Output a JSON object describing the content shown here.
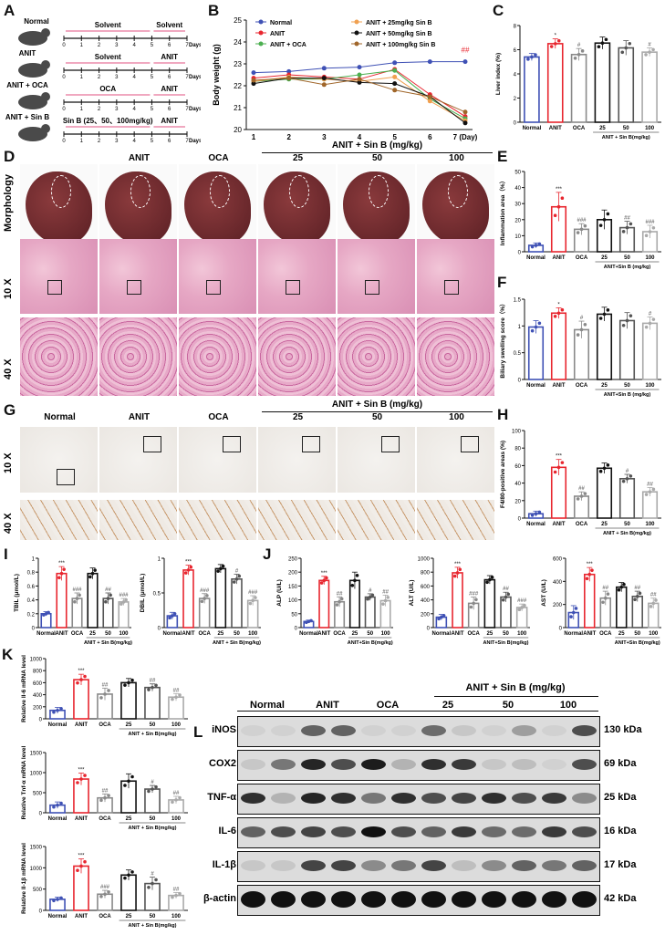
{
  "panel_labels": [
    "A",
    "B",
    "C",
    "D",
    "E",
    "F",
    "G",
    "H",
    "I",
    "J",
    "K",
    "L"
  ],
  "panel_a": {
    "rows": [
      {
        "group": "Normal",
        "seg1": "Solvent",
        "seg2": "Solvent"
      },
      {
        "group": "ANIT",
        "seg1": "Solvent",
        "seg2": "ANIT"
      },
      {
        "group": "ANIT + OCA",
        "seg1": "OCA",
        "seg2": "ANIT"
      },
      {
        "group": "ANIT + Sin B",
        "seg1": "Sin B (25、50、100mg/kg)",
        "seg2": "ANIT"
      }
    ],
    "ticks": [
      "0",
      "1",
      "2",
      "3",
      "4",
      "5",
      "6",
      "7"
    ],
    "unit": "Days",
    "colors": {
      "arrow": "#e8749a",
      "mouse": "#4a4a4a"
    }
  },
  "groups_header": "ANIT + Sin B (mg/kg)",
  "columns": [
    "Normal",
    "ANIT",
    "OCA",
    "25",
    "50",
    "100"
  ],
  "panel_d": {
    "rows": [
      "Morphology",
      "10 X",
      "40 X"
    ]
  },
  "panel_g": {
    "rows": [
      "10 X",
      "40 X"
    ]
  },
  "panel_l": {
    "headers": [
      "Normal",
      "ANIT",
      "OCA",
      "25",
      "50",
      "100"
    ],
    "proteins": [
      {
        "name": "iNOS",
        "kda": "130 kDa",
        "lanes": [
          0.05,
          0.05,
          0.6,
          0.6,
          0.05,
          0.05,
          0.55,
          0.1,
          0.05,
          0.3,
          0.05,
          0.7
        ]
      },
      {
        "name": "COX2",
        "kda": "69 kDa",
        "lanes": [
          0.1,
          0.5,
          0.9,
          0.7,
          0.95,
          0.2,
          0.85,
          0.8,
          0.1,
          0.15,
          0.05,
          0.7
        ]
      },
      {
        "name": "TNF-α",
        "kda": "25 kDa",
        "lanes": [
          0.85,
          0.2,
          0.9,
          0.85,
          0.5,
          0.85,
          0.7,
          0.75,
          0.85,
          0.7,
          0.8,
          0.4
        ]
      },
      {
        "name": "IL-6",
        "kda": "16 kDa",
        "lanes": [
          0.6,
          0.7,
          0.75,
          0.7,
          1.0,
          0.7,
          0.6,
          0.8,
          0.55,
          0.55,
          0.8,
          0.7
        ]
      },
      {
        "name": "IL-1β",
        "kda": "17 kDa",
        "lanes": [
          0.1,
          0.1,
          0.75,
          0.75,
          0.4,
          0.5,
          0.75,
          0.15,
          0.4,
          0.6,
          0.5,
          0.6
        ]
      },
      {
        "name": "β-actin",
        "kda": "42 kDa",
        "lanes": [
          1,
          1,
          1,
          1,
          1,
          1,
          1,
          1,
          1,
          1,
          1,
          1
        ]
      }
    ]
  },
  "chart_data": [
    {
      "id": "B",
      "type": "line",
      "ylabel": "Body weight (g)",
      "x": [
        1,
        2,
        3,
        4,
        5,
        6,
        7
      ],
      "xticklabels": [
        "1",
        "2",
        "3",
        "4",
        "5",
        "6",
        "7 (Day)"
      ],
      "ylim": [
        20,
        25
      ],
      "yticks": [
        20,
        21,
        22,
        23,
        24,
        25
      ],
      "annotation": "##",
      "legend": "top",
      "series": [
        {
          "name": "Normal",
          "color": "#3f51b5",
          "values": [
            22.6,
            22.65,
            22.8,
            22.85,
            23.05,
            23.1,
            23.1
          ]
        },
        {
          "name": "ANIT",
          "color": "#e8262f",
          "values": [
            22.35,
            22.5,
            22.4,
            22.3,
            22.75,
            21.6,
            20.6
          ]
        },
        {
          "name": "ANIT + OCA",
          "color": "#4caf50",
          "values": [
            22.2,
            22.3,
            22.3,
            22.5,
            22.7,
            21.4,
            20.5
          ]
        },
        {
          "name": "ANIT + 25mg/kg Sin B",
          "color": "#f0a050",
          "values": [
            22.2,
            22.4,
            22.3,
            22.2,
            22.4,
            21.3,
            20.4
          ]
        },
        {
          "name": "ANIT + 50mg/kg Sin B",
          "color": "#111111",
          "values": [
            22.1,
            22.35,
            22.35,
            22.15,
            22.1,
            21.5,
            20.3
          ]
        },
        {
          "name": "ANIT + 100mg/kg Sin B",
          "color": "#a0662a",
          "values": [
            22.25,
            22.35,
            22.05,
            22.3,
            21.8,
            21.5,
            20.8
          ]
        }
      ]
    },
    {
      "id": "C",
      "type": "bar",
      "ylabel": "Liver index (%)",
      "group_label": "ANIT + Sin B(mg/kg)",
      "ylim": [
        0,
        8
      ],
      "yticks": [
        0,
        2,
        4,
        6,
        8
      ],
      "values": [
        5.4,
        6.5,
        5.6,
        6.55,
        6.15,
        5.8
      ],
      "errors": [
        0.3,
        0.4,
        0.5,
        0.5,
        0.6,
        0.35
      ],
      "sig": [
        "",
        "*",
        "#",
        "",
        "",
        "#"
      ]
    },
    {
      "id": "E",
      "type": "bar",
      "ylabel": "Inflammation area（%）",
      "group_label": "ANIT+Sin B (mg/kg)",
      "ylim": [
        0,
        50
      ],
      "yticks": [
        0,
        10,
        20,
        30,
        40,
        50
      ],
      "values": [
        4,
        28,
        14,
        20,
        15,
        12.5
      ],
      "errors": [
        1.5,
        9,
        3.5,
        6,
        4,
        4
      ],
      "sig": [
        "",
        "***",
        "###",
        "",
        "##",
        "###"
      ]
    },
    {
      "id": "F",
      "type": "bar",
      "ylabel": "Biliary swelling score（%）",
      "group_label": "ANIT+Sin B (mg/kg)",
      "ylim": [
        0,
        1.5
      ],
      "yticks": [
        0,
        0.5,
        1.0,
        1.5
      ],
      "values": [
        0.98,
        1.24,
        0.93,
        1.22,
        1.1,
        1.05
      ],
      "errors": [
        0.12,
        0.1,
        0.16,
        0.13,
        0.15,
        0.12
      ],
      "sig": [
        "",
        "*",
        "#",
        "",
        "",
        "#"
      ]
    },
    {
      "id": "H",
      "type": "bar",
      "ylabel": "F4/80-positive areas (%)",
      "group_label": "ANIT + Sin B(mg/kg)",
      "ylim": [
        0,
        100
      ],
      "yticks": [
        0,
        20,
        40,
        60,
        80,
        100
      ],
      "values": [
        5,
        58,
        25,
        57,
        45,
        30
      ],
      "errors": [
        3,
        9,
        5,
        6,
        5,
        5
      ],
      "sig": [
        "",
        "***",
        "##",
        "",
        "#",
        "##"
      ]
    },
    {
      "id": "TBIL",
      "type": "bar",
      "ylabel": "TBIL (μmol/L)",
      "group_label": "ANIT + Sin B(mg/kg)",
      "ylim": [
        0,
        1.0
      ],
      "yticks": [
        0,
        0.2,
        0.4,
        0.6,
        0.8,
        1.0
      ],
      "values": [
        0.2,
        0.78,
        0.42,
        0.78,
        0.42,
        0.37
      ],
      "errors": [
        0.03,
        0.1,
        0.08,
        0.08,
        0.08,
        0.05
      ],
      "sig": [
        "",
        "***",
        "###",
        "",
        "##",
        "###"
      ]
    },
    {
      "id": "DBIL",
      "type": "bar",
      "ylabel": "DBIL (μmol/L)",
      "group_label": "ANIT + Sin B(mg/kg)",
      "ylim": [
        0,
        1.0
      ],
      "yticks": [
        0,
        0.5,
        1.0
      ],
      "values": [
        0.17,
        0.83,
        0.42,
        0.85,
        0.7,
        0.39
      ],
      "errors": [
        0.05,
        0.07,
        0.07,
        0.06,
        0.07,
        0.07
      ],
      "sig": [
        "",
        "***",
        "###",
        "",
        "#",
        "###"
      ]
    },
    {
      "id": "ALP",
      "type": "bar",
      "ylabel": "ALP (U/L)",
      "group_label": "ANIT+Sin B(mg/kg)",
      "ylim": [
        0,
        250
      ],
      "yticks": [
        0,
        50,
        100,
        150,
        200,
        250
      ],
      "values": [
        22,
        170,
        93,
        170,
        110,
        97
      ],
      "errors": [
        5,
        15,
        18,
        30,
        12,
        20
      ],
      "sig": [
        "",
        "***",
        "##",
        "",
        "#",
        "##"
      ]
    },
    {
      "id": "ALT",
      "type": "bar",
      "ylabel": "ALT (U/L)",
      "group_label": "ANIT+Sin B(mg/kg)",
      "ylim": [
        0,
        1000
      ],
      "yticks": [
        0,
        200,
        400,
        600,
        800,
        1000
      ],
      "values": [
        150,
        790,
        350,
        690,
        440,
        290
      ],
      "errors": [
        40,
        80,
        90,
        60,
        70,
        50
      ],
      "sig": [
        "",
        "***",
        "###",
        "",
        "##",
        "###"
      ]
    },
    {
      "id": "AST",
      "type": "bar",
      "ylabel": "AST (U/L)",
      "group_label": "ANIT+Sin B(mg/kg)",
      "ylim": [
        0,
        600
      ],
      "yticks": [
        0,
        200,
        400,
        600
      ],
      "values": [
        130,
        460,
        255,
        350,
        270,
        210
      ],
      "errors": [
        60,
        60,
        60,
        40,
        45,
        45
      ],
      "sig": [
        "",
        "***",
        "##",
        "",
        "##",
        "##"
      ]
    },
    {
      "id": "Il6",
      "type": "bar",
      "ylabel": "Relative Il-6 mRNA level",
      "group_label": "ANIT + Sin B(mg/kg)",
      "ylim": [
        0,
        1000
      ],
      "yticks": [
        0,
        200,
        400,
        600,
        800,
        1000
      ],
      "values": [
        140,
        650,
        410,
        600,
        520,
        360
      ],
      "errors": [
        50,
        90,
        100,
        70,
        60,
        60
      ],
      "sig": [
        "",
        "***",
        "##",
        "",
        "##",
        "##"
      ]
    },
    {
      "id": "Tnf",
      "type": "bar",
      "ylabel": "Relative Tnf-α mRNA level",
      "group_label": "ANIT + Sin B(mg/kg)",
      "ylim": [
        0,
        1500
      ],
      "yticks": [
        0,
        500,
        1000,
        1500
      ],
      "values": [
        190,
        840,
        370,
        790,
        590,
        320
      ],
      "errors": [
        80,
        150,
        100,
        180,
        90,
        90
      ],
      "sig": [
        "",
        "***",
        "##",
        "",
        "#",
        "##"
      ]
    },
    {
      "id": "Il1b",
      "type": "bar",
      "ylabel": "Relative Il-1β mRNA level",
      "group_label": "ANIT + Sin B(mg/kg)",
      "ylim": [
        0,
        1500
      ],
      "yticks": [
        0,
        500,
        1000,
        1500
      ],
      "values": [
        260,
        1040,
        380,
        830,
        630,
        350
      ],
      "errors": [
        50,
        170,
        90,
        120,
        150,
        70
      ],
      "sig": [
        "",
        "***",
        "###",
        "",
        "#",
        "##"
      ]
    }
  ],
  "categories": [
    "Normal",
    "ANIT",
    "OCA",
    "25",
    "50",
    "100"
  ],
  "bar_colors": [
    "#3f51b5",
    "#e8262f",
    "#8a8a8a",
    "#111111",
    "#555555",
    "#aaaaaa"
  ]
}
